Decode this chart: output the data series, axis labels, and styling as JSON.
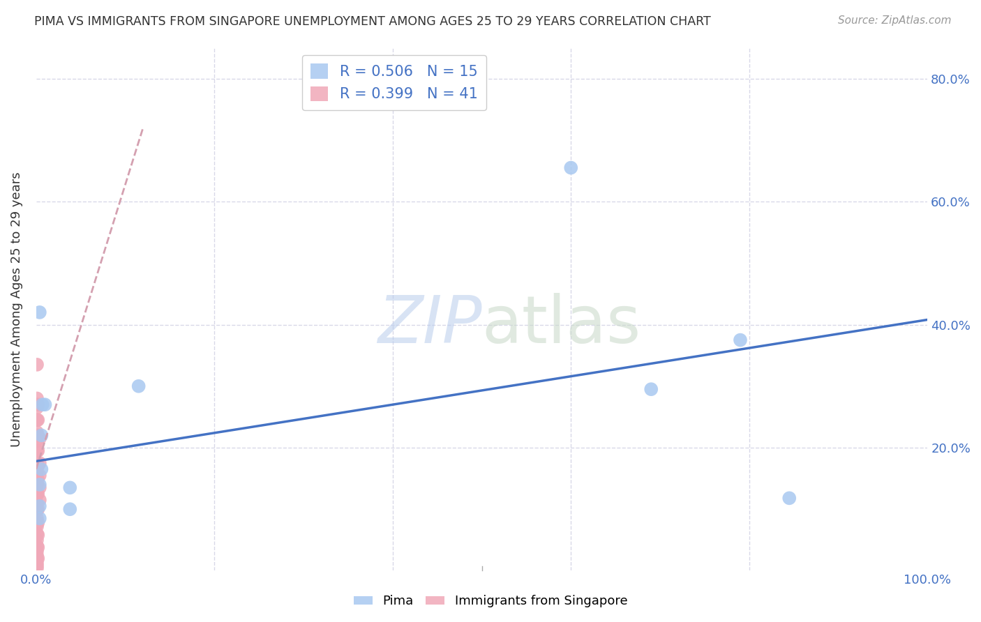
{
  "title": "PIMA VS IMMIGRANTS FROM SINGAPORE UNEMPLOYMENT AMONG AGES 25 TO 29 YEARS CORRELATION CHART",
  "source": "Source: ZipAtlas.com",
  "ylabel": "Unemployment Among Ages 25 to 29 years",
  "xlim": [
    0.0,
    1.0
  ],
  "ylim": [
    0.0,
    0.85
  ],
  "x_ticks": [
    0.0,
    0.2,
    0.4,
    0.6,
    0.8,
    1.0
  ],
  "x_tick_labels": [
    "0.0%",
    "",
    "",
    "",
    "",
    "100.0%"
  ],
  "y_ticks": [
    0.0,
    0.2,
    0.4,
    0.6,
    0.8
  ],
  "y_tick_labels_right": [
    "",
    "20.0%",
    "40.0%",
    "60.0%",
    "80.0%"
  ],
  "background_color": "#ffffff",
  "legend_entries": [
    {
      "label_r": "R = 0.506",
      "label_n": "N = 15",
      "color": "#a8c8f0"
    },
    {
      "label_r": "R = 0.399",
      "label_n": "N = 41",
      "color": "#f0a8b8"
    }
  ],
  "legend_label_bottom": [
    "Pima",
    "Immigrants from Singapore"
  ],
  "pima_color": "#a8c8f0",
  "singapore_color": "#f0a8b8",
  "pima_line_color": "#4472C4",
  "singapore_line_color": "#d4a0b0",
  "pima_points": [
    [
      0.004,
      0.42
    ],
    [
      0.007,
      0.27
    ],
    [
      0.01,
      0.27
    ],
    [
      0.006,
      0.22
    ],
    [
      0.006,
      0.165
    ],
    [
      0.004,
      0.14
    ],
    [
      0.004,
      0.105
    ],
    [
      0.004,
      0.085
    ],
    [
      0.038,
      0.135
    ],
    [
      0.038,
      0.1
    ],
    [
      0.115,
      0.3
    ],
    [
      0.6,
      0.655
    ],
    [
      0.79,
      0.375
    ],
    [
      0.69,
      0.295
    ],
    [
      0.845,
      0.118
    ]
  ],
  "singapore_points": [
    [
      0.001,
      0.335
    ],
    [
      0.001,
      0.28
    ],
    [
      0.001,
      0.265
    ],
    [
      0.001,
      0.245
    ],
    [
      0.001,
      0.225
    ],
    [
      0.001,
      0.21
    ],
    [
      0.001,
      0.195
    ],
    [
      0.001,
      0.175
    ],
    [
      0.001,
      0.16
    ],
    [
      0.001,
      0.14
    ],
    [
      0.001,
      0.125
    ],
    [
      0.001,
      0.11
    ],
    [
      0.001,
      0.098
    ],
    [
      0.001,
      0.085
    ],
    [
      0.001,
      0.072
    ],
    [
      0.001,
      0.06
    ],
    [
      0.001,
      0.05
    ],
    [
      0.001,
      0.04
    ],
    [
      0.001,
      0.032
    ],
    [
      0.001,
      0.025
    ],
    [
      0.001,
      0.018
    ],
    [
      0.001,
      0.012
    ],
    [
      0.001,
      0.008
    ],
    [
      0.001,
      0.004
    ],
    [
      0.002,
      0.27
    ],
    [
      0.002,
      0.245
    ],
    [
      0.002,
      0.22
    ],
    [
      0.002,
      0.195
    ],
    [
      0.002,
      0.17
    ],
    [
      0.002,
      0.148
    ],
    [
      0.002,
      0.125
    ],
    [
      0.002,
      0.1
    ],
    [
      0.002,
      0.078
    ],
    [
      0.002,
      0.058
    ],
    [
      0.002,
      0.038
    ],
    [
      0.002,
      0.02
    ],
    [
      0.004,
      0.215
    ],
    [
      0.004,
      0.175
    ],
    [
      0.004,
      0.155
    ],
    [
      0.004,
      0.135
    ],
    [
      0.004,
      0.115
    ]
  ],
  "pima_trend_x": [
    0.0,
    1.0
  ],
  "pima_trend_y": [
    0.178,
    0.408
  ],
  "singapore_trend_x": [
    0.0,
    0.12
  ],
  "singapore_trend_y": [
    0.165,
    0.72
  ],
  "grid_color": "#d8d8e8",
  "tick_color": "#4472C4",
  "r_color": "#4472C4",
  "n_color": "#22aa22"
}
